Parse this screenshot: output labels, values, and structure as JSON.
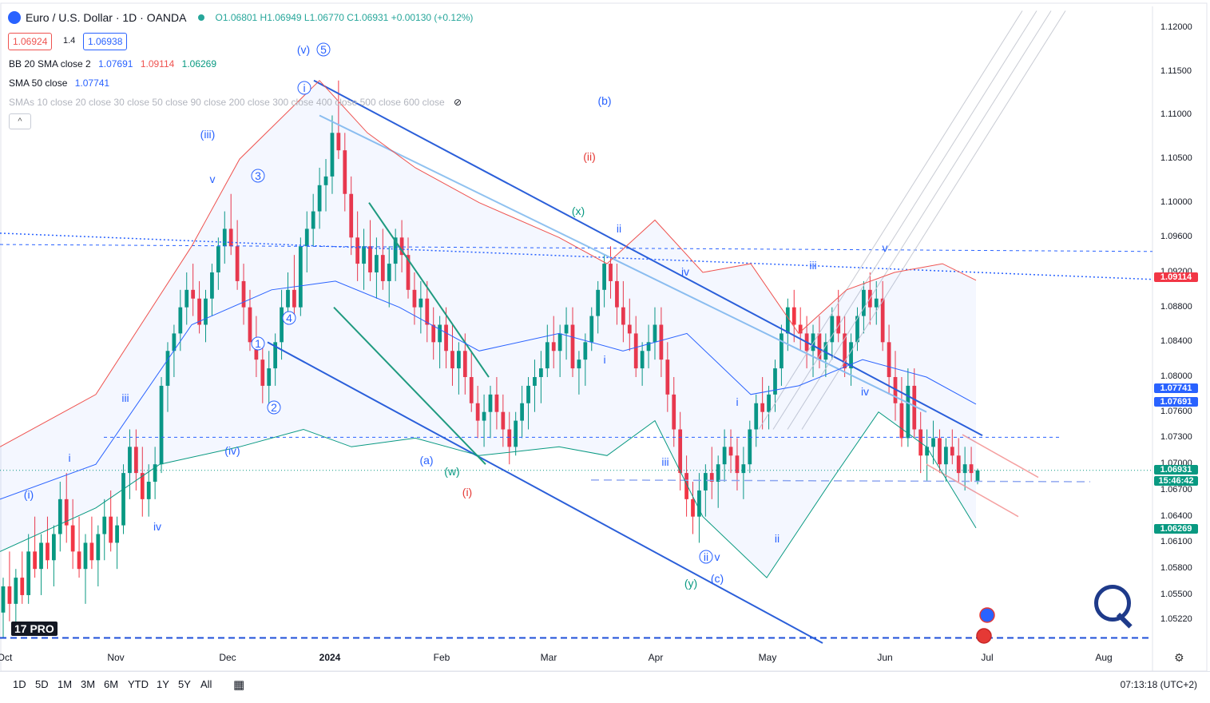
{
  "header": {
    "title": "Euro / U.S. Dollar · 1D · OANDA",
    "ohlc": "O1.06801  H1.06949  L1.06770  C1.06931  +0.00130 (+0.12%)"
  },
  "quote": {
    "bid": "1.06924",
    "spread": "1.4",
    "ask": "1.06938"
  },
  "indicators": {
    "bb_label": "BB 20 SMA close 2",
    "bb_mid": "1.07691",
    "bb_upper": "1.09114",
    "bb_lower": "1.06269",
    "sma_label": "SMA 50 close",
    "sma_value": "1.07741",
    "smas_label": "SMAs 10 close 20 close 30 close 50 close 90 close 200 close 300 close 400 close 500 close 600 close",
    "collapse": "^"
  },
  "price_labels": {
    "upper_band": "1.09114",
    "sma50": "1.07741",
    "mid_band": "1.07691",
    "last": "1.06931",
    "countdown": "15:46:42",
    "lower_band": "1.06269"
  },
  "timeframes": [
    "1D",
    "5D",
    "1M",
    "3M",
    "6M",
    "YTD",
    "1Y",
    "5Y",
    "All"
  ],
  "clock": "07:13:18 (UTC+2)",
  "brand": "PRO",
  "chart_data": {
    "type": "candlestick",
    "title": "Euro / U.S. Dollar · 1D · OANDA",
    "y_ticks": [
      "1.12000",
      "1.11500",
      "1.11000",
      "1.10500",
      "1.10000",
      "1.09600",
      "1.09200",
      "1.08800",
      "1.08400",
      "1.08000",
      "1.07600",
      "1.07300",
      "1.07000",
      "1.06700",
      "1.06400",
      "1.06100",
      "1.05800",
      "1.05500",
      "1.05220"
    ],
    "x_ticks": [
      "Oct",
      "Nov",
      "Dec",
      "2024",
      "Feb",
      "Mar",
      "Apr",
      "May",
      "Jun",
      "Jul",
      "Aug"
    ],
    "ylim": [
      1.0495,
      1.1225
    ],
    "wave_labels": [
      "(v)",
      "5",
      "i",
      "(b)",
      "(iii)",
      "v",
      "3",
      "(ii)",
      "(x)",
      "ii",
      "iv",
      "iii",
      "v",
      "4",
      "1",
      "iii",
      "2",
      "i",
      "iv",
      "i",
      "(iv)",
      "(a)",
      "(w)",
      "(i)",
      "iii",
      "i",
      "(i)",
      "iv",
      "ii",
      "v",
      "(y)",
      "(c)",
      "ii"
    ],
    "last_close": 1.06931,
    "bb_upper": 1.09114,
    "bb_mid": 1.07691,
    "bb_lower": 1.06269,
    "sma50": 1.07741,
    "candles": [
      [
        1.053,
        1.057,
        1.05,
        1.056
      ],
      [
        1.056,
        1.06,
        1.052,
        1.054
      ],
      [
        1.054,
        1.058,
        1.051,
        1.057
      ],
      [
        1.057,
        1.06,
        1.054,
        1.055
      ],
      [
        1.055,
        1.062,
        1.054,
        1.06
      ],
      [
        1.06,
        1.064,
        1.057,
        1.058
      ],
      [
        1.058,
        1.062,
        1.055,
        1.061
      ],
      [
        1.061,
        1.064,
        1.058,
        1.059
      ],
      [
        1.059,
        1.063,
        1.056,
        1.062
      ],
      [
        1.062,
        1.068,
        1.06,
        1.066
      ],
      [
        1.066,
        1.069,
        1.061,
        1.063
      ],
      [
        1.063,
        1.066,
        1.058,
        1.06
      ],
      [
        1.06,
        1.064,
        1.057,
        1.058
      ],
      [
        1.058,
        1.062,
        1.054,
        1.061
      ],
      [
        1.061,
        1.064,
        1.058,
        1.059
      ],
      [
        1.059,
        1.063,
        1.056,
        1.062
      ],
      [
        1.062,
        1.066,
        1.059,
        1.064
      ],
      [
        1.064,
        1.067,
        1.06,
        1.061
      ],
      [
        1.061,
        1.064,
        1.058,
        1.063
      ],
      [
        1.063,
        1.07,
        1.062,
        1.069
      ],
      [
        1.069,
        1.074,
        1.066,
        1.072
      ],
      [
        1.072,
        1.074,
        1.067,
        1.069
      ],
      [
        1.069,
        1.072,
        1.064,
        1.066
      ],
      [
        1.066,
        1.07,
        1.064,
        1.068
      ],
      [
        1.068,
        1.072,
        1.066,
        1.07
      ],
      [
        1.07,
        1.08,
        1.069,
        1.079
      ],
      [
        1.079,
        1.084,
        1.076,
        1.083
      ],
      [
        1.083,
        1.086,
        1.08,
        1.085
      ],
      [
        1.085,
        1.09,
        1.083,
        1.088
      ],
      [
        1.088,
        1.092,
        1.086,
        1.09
      ],
      [
        1.09,
        1.093,
        1.087,
        1.089
      ],
      [
        1.089,
        1.091,
        1.085,
        1.086
      ],
      [
        1.086,
        1.09,
        1.084,
        1.089
      ],
      [
        1.089,
        1.093,
        1.087,
        1.092
      ],
      [
        1.092,
        1.096,
        1.09,
        1.095
      ],
      [
        1.095,
        1.099,
        1.093,
        1.097
      ],
      [
        1.097,
        1.101,
        1.094,
        1.095
      ],
      [
        1.095,
        1.098,
        1.09,
        1.091
      ],
      [
        1.091,
        1.093,
        1.086,
        1.088
      ],
      [
        1.088,
        1.09,
        1.083,
        1.084
      ],
      [
        1.084,
        1.087,
        1.08,
        1.082
      ],
      [
        1.082,
        1.084,
        1.077,
        1.079
      ],
      [
        1.079,
        1.083,
        1.076,
        1.081
      ],
      [
        1.081,
        1.085,
        1.079,
        1.084
      ],
      [
        1.084,
        1.09,
        1.082,
        1.088
      ],
      [
        1.088,
        1.092,
        1.086,
        1.09
      ],
      [
        1.09,
        1.094,
        1.087,
        1.088
      ],
      [
        1.088,
        1.096,
        1.087,
        1.095
      ],
      [
        1.095,
        1.099,
        1.092,
        1.097
      ],
      [
        1.097,
        1.101,
        1.095,
        1.099
      ],
      [
        1.099,
        1.104,
        1.097,
        1.102
      ],
      [
        1.102,
        1.105,
        1.099,
        1.103
      ],
      [
        1.103,
        1.11,
        1.101,
        1.108
      ],
      [
        1.108,
        1.114,
        1.105,
        1.106
      ],
      [
        1.106,
        1.108,
        1.099,
        1.101
      ],
      [
        1.101,
        1.103,
        1.094,
        1.096
      ],
      [
        1.096,
        1.099,
        1.091,
        1.093
      ],
      [
        1.093,
        1.097,
        1.09,
        1.095
      ],
      [
        1.095,
        1.098,
        1.091,
        1.092
      ],
      [
        1.092,
        1.096,
        1.089,
        1.094
      ],
      [
        1.094,
        1.097,
        1.09,
        1.091
      ],
      [
        1.091,
        1.095,
        1.088,
        1.093
      ],
      [
        1.093,
        1.097,
        1.091,
        1.096
      ],
      [
        1.096,
        1.098,
        1.092,
        1.094
      ],
      [
        1.094,
        1.096,
        1.089,
        1.09
      ],
      [
        1.09,
        1.092,
        1.086,
        1.088
      ],
      [
        1.088,
        1.091,
        1.085,
        1.089
      ],
      [
        1.089,
        1.091,
        1.084,
        1.086
      ],
      [
        1.086,
        1.088,
        1.082,
        1.084
      ],
      [
        1.084,
        1.087,
        1.081,
        1.086
      ],
      [
        1.086,
        1.088,
        1.081,
        1.083
      ],
      [
        1.083,
        1.086,
        1.079,
        1.081
      ],
      [
        1.081,
        1.084,
        1.078,
        1.083
      ],
      [
        1.083,
        1.085,
        1.078,
        1.08
      ],
      [
        1.08,
        1.083,
        1.076,
        1.077
      ],
      [
        1.077,
        1.079,
        1.073,
        1.075
      ],
      [
        1.075,
        1.078,
        1.072,
        1.076
      ],
      [
        1.076,
        1.079,
        1.073,
        1.078
      ],
      [
        1.078,
        1.08,
        1.074,
        1.076
      ],
      [
        1.076,
        1.078,
        1.072,
        1.074
      ],
      [
        1.074,
        1.076,
        1.07,
        1.072
      ],
      [
        1.072,
        1.076,
        1.071,
        1.075
      ],
      [
        1.075,
        1.079,
        1.073,
        1.077
      ],
      [
        1.077,
        1.08,
        1.074,
        1.079
      ],
      [
        1.079,
        1.082,
        1.076,
        1.08
      ],
      [
        1.08,
        1.083,
        1.077,
        1.081
      ],
      [
        1.081,
        1.086,
        1.08,
        1.084
      ],
      [
        1.084,
        1.087,
        1.081,
        1.083
      ],
      [
        1.083,
        1.086,
        1.08,
        1.085
      ],
      [
        1.085,
        1.088,
        1.082,
        1.086
      ],
      [
        1.086,
        1.088,
        1.08,
        1.081
      ],
      [
        1.081,
        1.083,
        1.078,
        1.082
      ],
      [
        1.082,
        1.085,
        1.079,
        1.084
      ],
      [
        1.084,
        1.088,
        1.083,
        1.087
      ],
      [
        1.087,
        1.091,
        1.085,
        1.09
      ],
      [
        1.09,
        1.094,
        1.088,
        1.093
      ],
      [
        1.093,
        1.095,
        1.089,
        1.091
      ],
      [
        1.091,
        1.093,
        1.086,
        1.088
      ],
      [
        1.088,
        1.091,
        1.084,
        1.086
      ],
      [
        1.086,
        1.089,
        1.083,
        1.085
      ],
      [
        1.085,
        1.087,
        1.08,
        1.081
      ],
      [
        1.081,
        1.084,
        1.079,
        1.083
      ],
      [
        1.083,
        1.086,
        1.081,
        1.084
      ],
      [
        1.084,
        1.088,
        1.082,
        1.086
      ],
      [
        1.086,
        1.088,
        1.08,
        1.082
      ],
      [
        1.082,
        1.084,
        1.076,
        1.078
      ],
      [
        1.078,
        1.08,
        1.072,
        1.074
      ],
      [
        1.074,
        1.076,
        1.067,
        1.069
      ],
      [
        1.069,
        1.071,
        1.064,
        1.066
      ],
      [
        1.066,
        1.068,
        1.062,
        1.064
      ],
      [
        1.064,
        1.069,
        1.061,
        1.067
      ],
      [
        1.067,
        1.07,
        1.064,
        1.069
      ],
      [
        1.069,
        1.072,
        1.066,
        1.068
      ],
      [
        1.068,
        1.071,
        1.065,
        1.07
      ],
      [
        1.07,
        1.074,
        1.068,
        1.072
      ],
      [
        1.072,
        1.074,
        1.069,
        1.071
      ],
      [
        1.071,
        1.073,
        1.067,
        1.069
      ],
      [
        1.069,
        1.072,
        1.066,
        1.07
      ],
      [
        1.07,
        1.075,
        1.069,
        1.074
      ],
      [
        1.074,
        1.078,
        1.072,
        1.077
      ],
      [
        1.077,
        1.08,
        1.074,
        1.076
      ],
      [
        1.076,
        1.079,
        1.074,
        1.078
      ],
      [
        1.078,
        1.082,
        1.076,
        1.081
      ],
      [
        1.081,
        1.086,
        1.079,
        1.085
      ],
      [
        1.085,
        1.089,
        1.083,
        1.088
      ],
      [
        1.088,
        1.09,
        1.084,
        1.086
      ],
      [
        1.086,
        1.088,
        1.083,
        1.085
      ],
      [
        1.085,
        1.087,
        1.081,
        1.083
      ],
      [
        1.083,
        1.086,
        1.08,
        1.085
      ],
      [
        1.085,
        1.087,
        1.081,
        1.082
      ],
      [
        1.082,
        1.085,
        1.08,
        1.084
      ],
      [
        1.084,
        1.088,
        1.082,
        1.087
      ],
      [
        1.087,
        1.09,
        1.084,
        1.085
      ],
      [
        1.085,
        1.087,
        1.08,
        1.081
      ],
      [
        1.081,
        1.085,
        1.079,
        1.084
      ],
      [
        1.084,
        1.088,
        1.083,
        1.087
      ],
      [
        1.087,
        1.091,
        1.085,
        1.09
      ],
      [
        1.09,
        1.092,
        1.086,
        1.088
      ],
      [
        1.088,
        1.091,
        1.086,
        1.089
      ],
      [
        1.089,
        1.091,
        1.083,
        1.084
      ],
      [
        1.084,
        1.086,
        1.078,
        1.08
      ],
      [
        1.08,
        1.083,
        1.075,
        1.077
      ],
      [
        1.077,
        1.08,
        1.072,
        1.073
      ],
      [
        1.073,
        1.081,
        1.072,
        1.079
      ],
      [
        1.079,
        1.081,
        1.073,
        1.074
      ],
      [
        1.074,
        1.076,
        1.069,
        1.071
      ],
      [
        1.071,
        1.074,
        1.068,
        1.072
      ],
      [
        1.072,
        1.075,
        1.07,
        1.073
      ],
      [
        1.073,
        1.074,
        1.069,
        1.07
      ],
      [
        1.07,
        1.073,
        1.068,
        1.072
      ],
      [
        1.072,
        1.074,
        1.07,
        1.071
      ],
      [
        1.071,
        1.073,
        1.068,
        1.069
      ],
      [
        1.069,
        1.072,
        1.067,
        1.07
      ],
      [
        1.07,
        1.072,
        1.068,
        1.069
      ],
      [
        1.068,
        1.0695,
        1.0677,
        1.0693
      ]
    ]
  }
}
